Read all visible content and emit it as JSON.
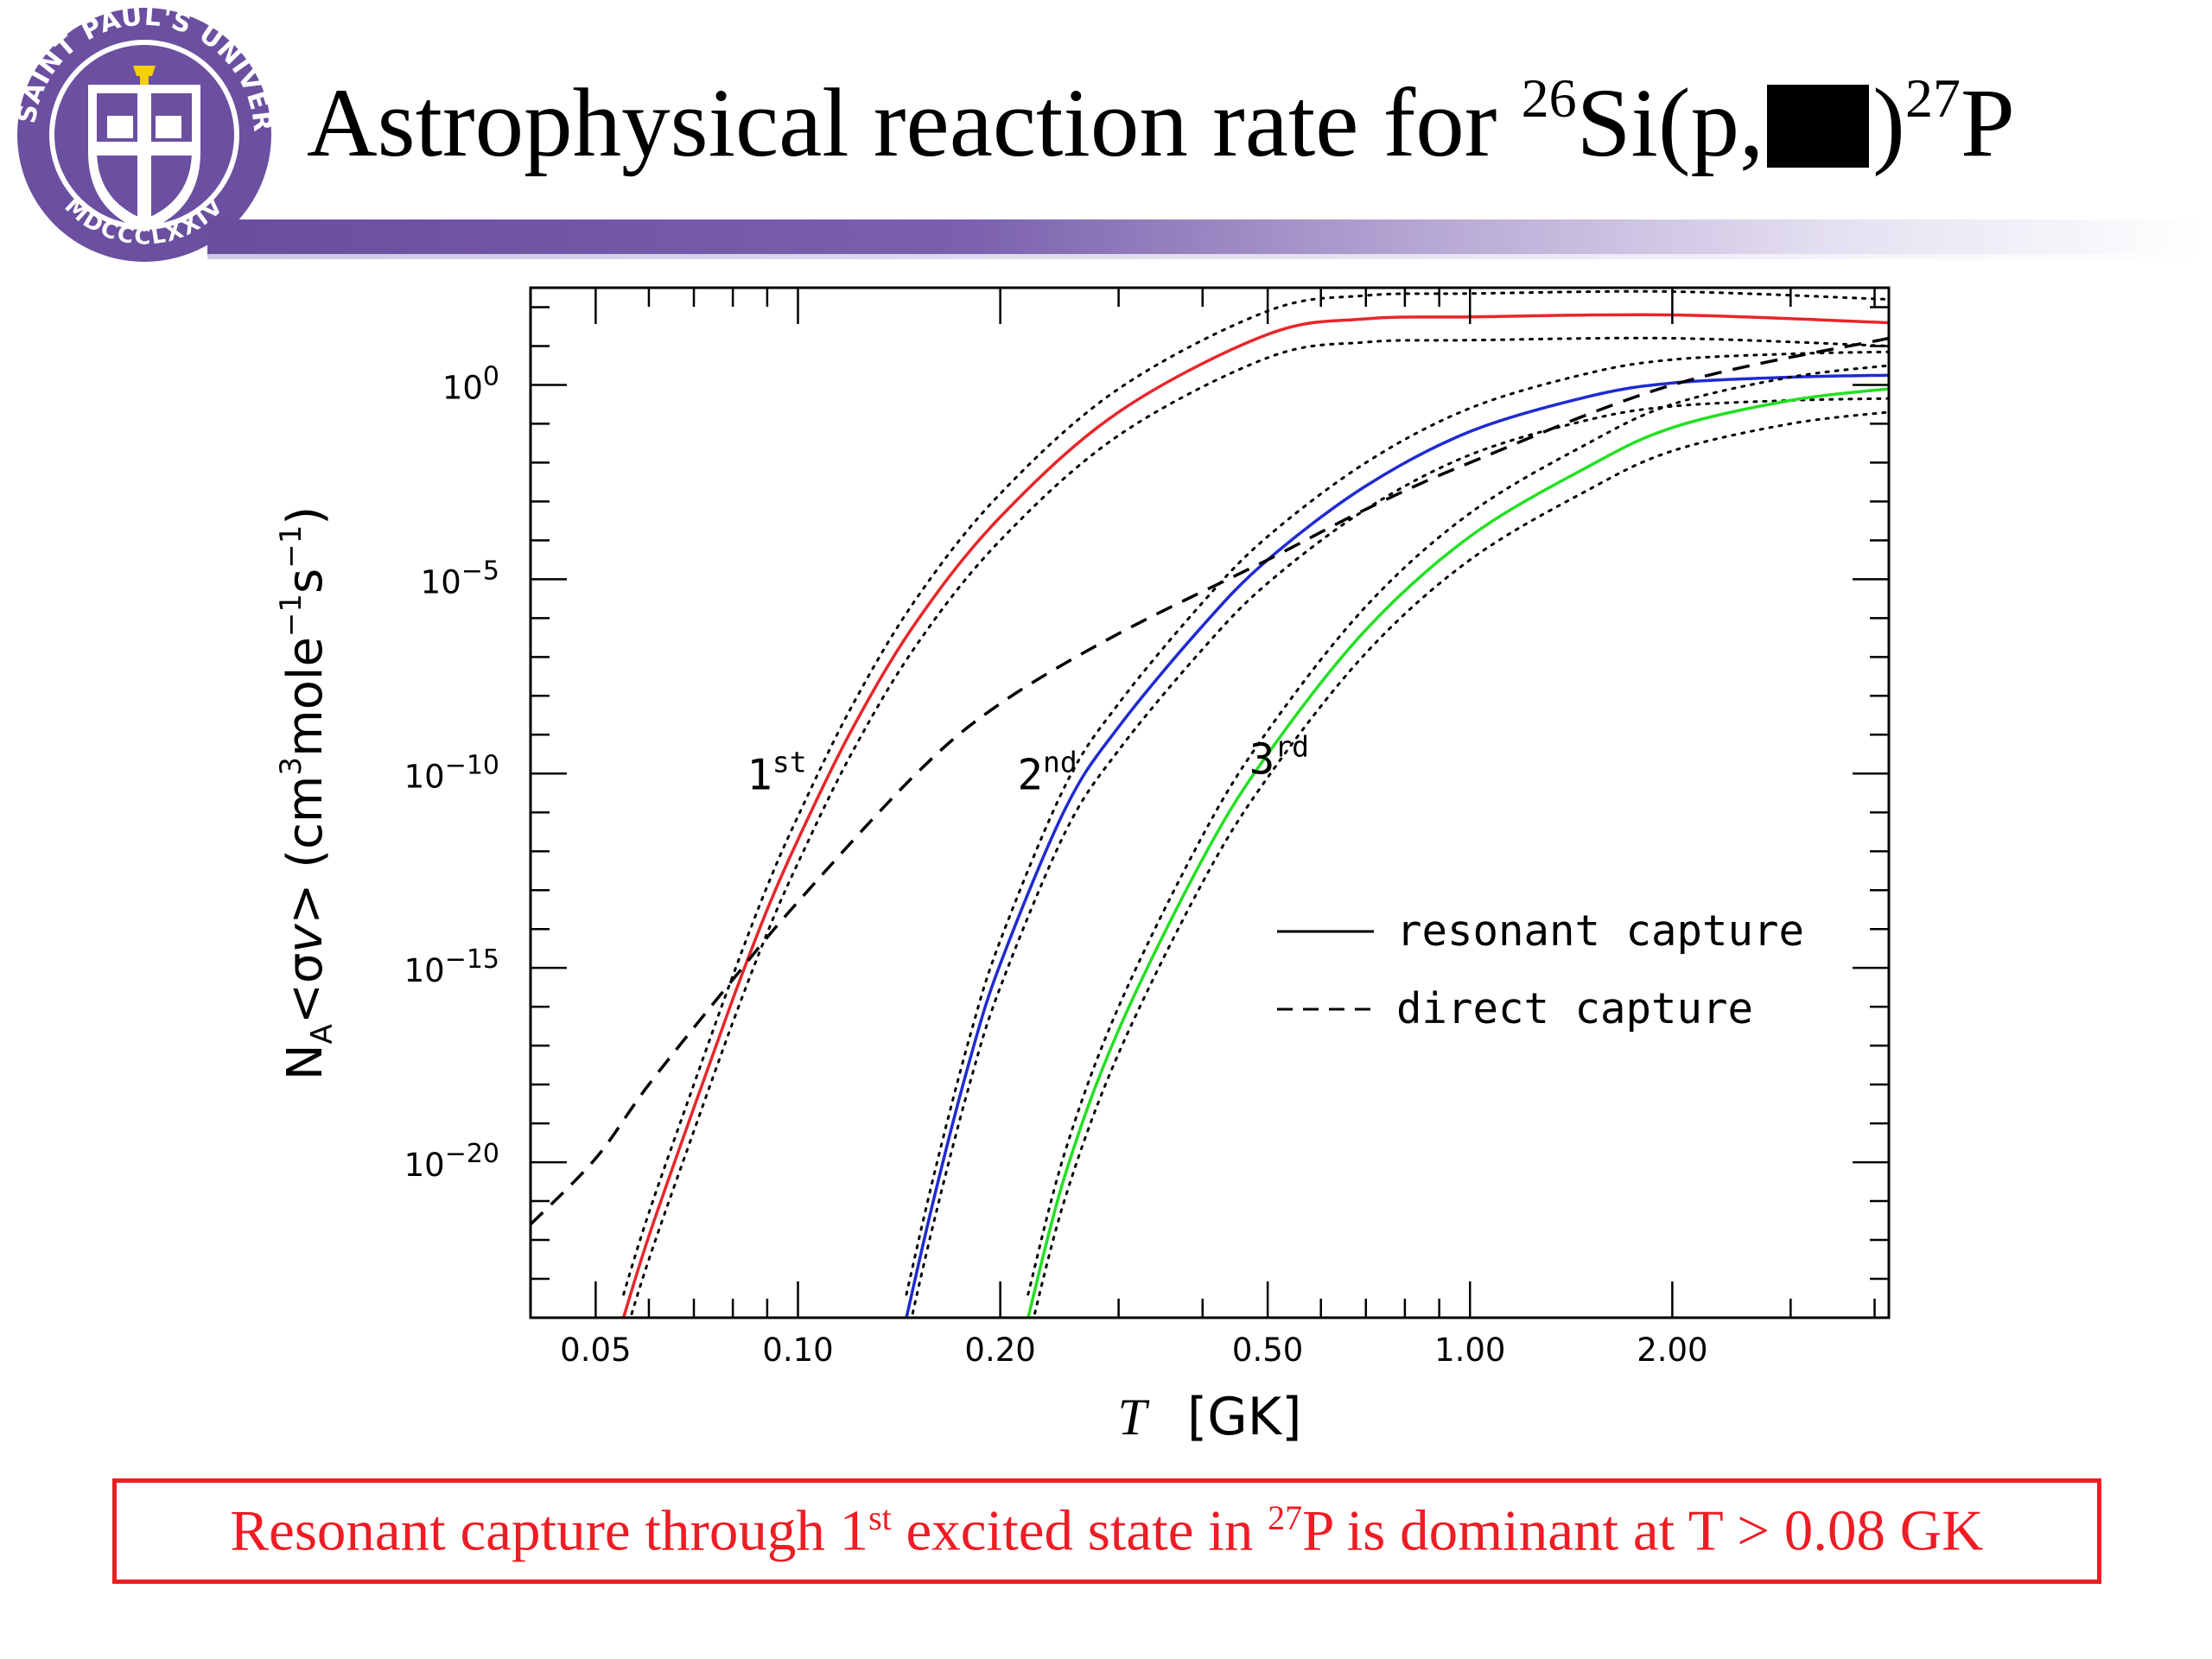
{
  "header": {
    "logo_text": "SAINT PAUL'S UNIVERSITY · TOKYO · MDCCCLXXIV",
    "title_prefix": "Astrophysical reaction rate for ",
    "title_target_mass": "26",
    "title_target": "Si(p,",
    "title_product_mass": "27",
    "title_product": ")",
    "title_product_symbol": "P",
    "colors": {
      "bar": "#6a4e9e",
      "logo": "#6b4fa0"
    }
  },
  "chart_data": {
    "type": "line",
    "x_scale": "log",
    "y_scale": "log",
    "xlim": [
      0.04,
      4.2
    ],
    "ylim_exponent": [
      -24,
      2.5
    ],
    "xlabel_symbol": "T",
    "xlabel_unit": "[GK]",
    "ylabel": "N_A<σv> (cm^3 mole^-1 s^-1)",
    "x_ticks": [
      {
        "value": 0.05,
        "label": "0.05"
      },
      {
        "value": 0.1,
        "label": "0.10"
      },
      {
        "value": 0.2,
        "label": "0.20"
      },
      {
        "value": 0.5,
        "label": "0.50"
      },
      {
        "value": 1.0,
        "label": "1.00"
      },
      {
        "value": 2.0,
        "label": "2.00"
      }
    ],
    "y_ticks": [
      {
        "exponent": 0,
        "label_base": "10",
        "label_exp": "0"
      },
      {
        "exponent": -5,
        "label_base": "10",
        "label_exp": "−5"
      },
      {
        "exponent": -10,
        "label_base": "10",
        "label_exp": "−10"
      },
      {
        "exponent": -15,
        "label_base": "10",
        "label_exp": "−15"
      },
      {
        "exponent": -20,
        "label_base": "10",
        "label_exp": "−20"
      }
    ],
    "series": [
      {
        "name": "1st",
        "style": "solid",
        "color": "#e8262a",
        "uncertainty_band": "dotted",
        "band_half_width_decades": 0.6,
        "x": [
          0.055,
          0.06,
          0.07,
          0.08,
          0.09,
          0.1,
          0.12,
          0.15,
          0.2,
          0.3,
          0.5,
          0.7,
          1.0,
          2.0,
          4.2
        ],
        "log10_y": [
          -24.0,
          -21.9,
          -18.6,
          -15.8,
          -13.5,
          -11.7,
          -8.9,
          -6.1,
          -3.4,
          -0.7,
          1.3,
          1.7,
          1.75,
          1.8,
          1.6
        ]
      },
      {
        "name": "2nd",
        "style": "solid",
        "color": "#1f2bd1",
        "uncertainty_band": "dotted",
        "band_half_width_decades": 0.6,
        "x": [
          0.145,
          0.16,
          0.18,
          0.2,
          0.25,
          0.3,
          0.4,
          0.5,
          0.7,
          1.0,
          1.5,
          2.0,
          3.0,
          4.2
        ],
        "log10_y": [
          -24.0,
          -20.8,
          -17.4,
          -14.9,
          -10.9,
          -8.8,
          -6.2,
          -4.5,
          -2.6,
          -1.2,
          -0.3,
          0.05,
          0.2,
          0.25
        ]
      },
      {
        "name": "3rd",
        "style": "solid",
        "color": "#22e022",
        "uncertainty_band": "dotted",
        "band_half_width_decades": 0.6,
        "x": [
          0.22,
          0.25,
          0.3,
          0.4,
          0.5,
          0.7,
          1.0,
          1.5,
          2.0,
          3.0,
          4.2
        ],
        "log10_y": [
          -24.0,
          -20.3,
          -16.6,
          -12.2,
          -9.5,
          -6.3,
          -3.9,
          -2.1,
          -1.1,
          -0.4,
          -0.1
        ]
      },
      {
        "name": "direct capture",
        "style": "dashed",
        "color": "#000000",
        "x": [
          0.04,
          0.05,
          0.06,
          0.08,
          0.1,
          0.15,
          0.2,
          0.3,
          0.5,
          0.7,
          1.0,
          2.0,
          4.2
        ],
        "log10_y": [
          -21.6,
          -19.9,
          -18.0,
          -15.3,
          -13.3,
          -10.0,
          -8.2,
          -6.4,
          -4.5,
          -3.2,
          -2.0,
          0.0,
          1.2
        ]
      }
    ],
    "annotations": [
      {
        "label": "1",
        "sup": "st",
        "x": 0.093,
        "log10_y": -10.4
      },
      {
        "label": "2",
        "sup": "nd",
        "x": 0.235,
        "log10_y": -10.4
      },
      {
        "label": "3",
        "sup": "rd",
        "x": 0.52,
        "log10_y": -10.0
      }
    ],
    "legend": {
      "placement": "lower-right",
      "items": [
        {
          "label": "resonant capture",
          "style": "solid"
        },
        {
          "label": "direct capture",
          "style": "dashed"
        }
      ]
    }
  },
  "conclusion": {
    "text_before": "Resonant capture through 1",
    "text_sup": "st",
    "text_middle": " excited state in ",
    "text_mass": "27",
    "text_after": "P is dominant at T > 0.08 GK",
    "border_color": "#ee1c24"
  }
}
